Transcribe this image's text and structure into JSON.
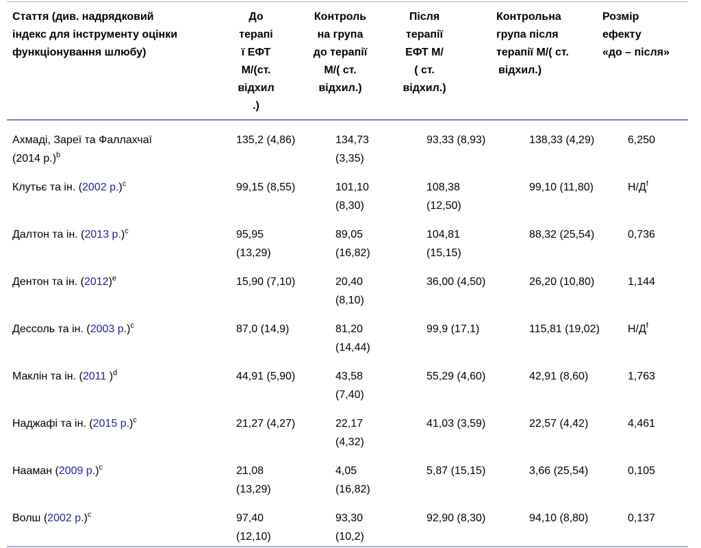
{
  "colors": {
    "link": "#22229c",
    "text": "#000000",
    "border_light": "#a9a9d2",
    "border_dark": "#8181aa",
    "background": "#ffffff"
  },
  "table": {
    "header": [
      {
        "label": "Стаття (див. надрядковий\nіндекс для інструменту оцінки\nфункціонування шлюбу)"
      },
      {
        "label": "До\nтерапі\nї ЕФТ\nМ/(ст.\nвідхил\n.)"
      },
      {
        "label": "Контроль\nна група\nдо терапії\nМ/( ст.\nвідхил.)"
      },
      {
        "label": "Після\nтерапії\nЕФТ М/\n( ст.\nвідхил.)"
      },
      {
        "label": "Контрольна\nгрупа після\nтерапії М/( ст.\nвідхил.)"
      },
      {
        "label": "Розмір\nефекту\n«до – після»"
      }
    ],
    "rows": [
      {
        "article": {
          "pre": "Ахмаді, Зареї та Фаллахчаї\n(2014 р.)",
          "link": "",
          "post": "",
          "sup": "b"
        },
        "cells": [
          {
            "text": "135,2 (4,86)",
            "sup": ""
          },
          {
            "text": "134,73\n(3,35)",
            "sup": ""
          },
          {
            "text": "93,33 (8,93)",
            "sup": ""
          },
          {
            "text": "138,33 (4,29)",
            "sup": ""
          },
          {
            "text": "6,250",
            "sup": ""
          }
        ]
      },
      {
        "article": {
          "pre": "Клутьє та ін. (",
          "link": "2002 р.",
          "post": ")",
          "sup": "c"
        },
        "cells": [
          {
            "text": "99,15 (8,55)",
            "sup": ""
          },
          {
            "text": "101,10\n(8,30)",
            "sup": ""
          },
          {
            "text": "108,38\n(12,50)",
            "sup": ""
          },
          {
            "text": "99,10 (11,80)",
            "sup": ""
          },
          {
            "text": "Н/Д",
            "sup": "f"
          }
        ]
      },
      {
        "article": {
          "pre": "Далтон та ін. (",
          "link": "2013 р.",
          "post": ")",
          "sup": "c"
        },
        "cells": [
          {
            "text": "95,95\n(13,29)",
            "sup": ""
          },
          {
            "text": "89,05\n(16,82)",
            "sup": ""
          },
          {
            "text": "104,81\n(15,15)",
            "sup": ""
          },
          {
            "text": "88,32 (25,54)",
            "sup": ""
          },
          {
            "text": "0,736",
            "sup": ""
          }
        ]
      },
      {
        "article": {
          "pre": "Дентон та ін. (",
          "link": "2012",
          "post": ")",
          "sup": "e"
        },
        "cells": [
          {
            "text": "15,90 (7,10)",
            "sup": ""
          },
          {
            "text": "20,40\n(8,10)",
            "sup": ""
          },
          {
            "text": "36,00 (4,50)",
            "sup": ""
          },
          {
            "text": "26,20 (10,80)",
            "sup": ""
          },
          {
            "text": "1,144",
            "sup": ""
          }
        ]
      },
      {
        "article": {
          "pre": "Дессоль та ін. (",
          "link": "2003 р.",
          "post": ")",
          "sup": "c"
        },
        "cells": [
          {
            "text": "87,0 (14,9)",
            "sup": ""
          },
          {
            "text": "81,20\n(14,44)",
            "sup": ""
          },
          {
            "text": "99,9 (17,1)",
            "sup": ""
          },
          {
            "text": "115,81 (19,02)",
            "sup": ""
          },
          {
            "text": "Н/Д",
            "sup": "f"
          }
        ]
      },
      {
        "article": {
          "pre": "Маклін та ін. (",
          "link": "2011",
          "post": " )",
          "sup": "d"
        },
        "cells": [
          {
            "text": "44,91 (5,90)",
            "sup": ""
          },
          {
            "text": "43,58\n(7,40)",
            "sup": ""
          },
          {
            "text": "55,29 (4,60)",
            "sup": ""
          },
          {
            "text": "42,91 (8,60)",
            "sup": ""
          },
          {
            "text": "1,763",
            "sup": ""
          }
        ]
      },
      {
        "article": {
          "pre": "Наджафі та ін. (",
          "link": "2015 р.",
          "post": ")",
          "sup": "c"
        },
        "cells": [
          {
            "text": "21,27 (4,27)",
            "sup": ""
          },
          {
            "text": "22,17\n(4,32)",
            "sup": ""
          },
          {
            "text": "41,03 (3,59)",
            "sup": ""
          },
          {
            "text": "22,57 (4,42)",
            "sup": ""
          },
          {
            "text": "4,461",
            "sup": ""
          }
        ]
      },
      {
        "article": {
          "pre": "Нааман (",
          "link": "2009 р.",
          "post": ")",
          "sup": "c"
        },
        "cells": [
          {
            "text": "21,08\n(13,29)",
            "sup": ""
          },
          {
            "text": "4,05\n(16,82)",
            "sup": ""
          },
          {
            "text": "5,87 (15,15)",
            "sup": ""
          },
          {
            "text": "3,66 (25,54)",
            "sup": ""
          },
          {
            "text": "0,105",
            "sup": ""
          }
        ]
      },
      {
        "article": {
          "pre": "Волш (",
          "link": "2002 р.",
          "post": ")",
          "sup": "c"
        },
        "cells": [
          {
            "text": "97,40\n(12,10)",
            "sup": ""
          },
          {
            "text": "93,30\n(10,2)",
            "sup": ""
          },
          {
            "text": "92,90 (8,30)",
            "sup": ""
          },
          {
            "text": "94,10 (8,80)",
            "sup": ""
          },
          {
            "text": "0,137",
            "sup": ""
          }
        ]
      }
    ]
  }
}
